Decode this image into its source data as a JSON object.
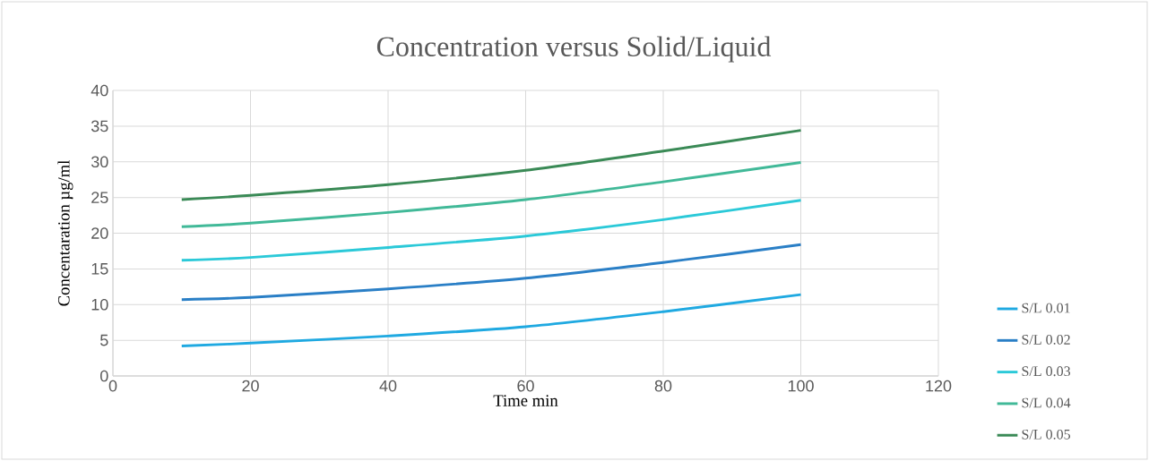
{
  "chart_data": {
    "type": "line",
    "title": "Concentration versus Solid/Liquid",
    "xlabel": "Time min",
    "ylabel": "Concentaration µg/ml",
    "x": [
      10,
      20,
      40,
      60,
      80,
      100
    ],
    "series": [
      {
        "name": "S/L 0.01",
        "color": "#1fa9e1",
        "values": [
          4.2,
          4.6,
          5.6,
          6.9,
          9.0,
          11.4
        ]
      },
      {
        "name": "S/L 0.02",
        "color": "#2a7fc6",
        "values": [
          10.7,
          11.0,
          12.2,
          13.7,
          15.9,
          18.4
        ]
      },
      {
        "name": "S/L 0.03",
        "color": "#2bc9d8",
        "values": [
          16.2,
          16.6,
          18.0,
          19.6,
          21.9,
          24.6
        ]
      },
      {
        "name": "S/L 0.04",
        "color": "#41b998",
        "values": [
          20.9,
          21.4,
          22.9,
          24.7,
          27.2,
          29.9
        ]
      },
      {
        "name": "S/L 0.05",
        "color": "#3a8a56",
        "values": [
          24.7,
          25.3,
          26.8,
          28.8,
          31.5,
          34.4
        ]
      }
    ],
    "xlim": [
      0,
      120
    ],
    "ylim": [
      0,
      40
    ],
    "xticks": [
      0,
      20,
      40,
      60,
      80,
      100,
      120
    ],
    "yticks": [
      0,
      5,
      10,
      15,
      20,
      25,
      30,
      35,
      40
    ],
    "grid": true,
    "legend": "right",
    "marker": "none",
    "line_style": "solid"
  }
}
